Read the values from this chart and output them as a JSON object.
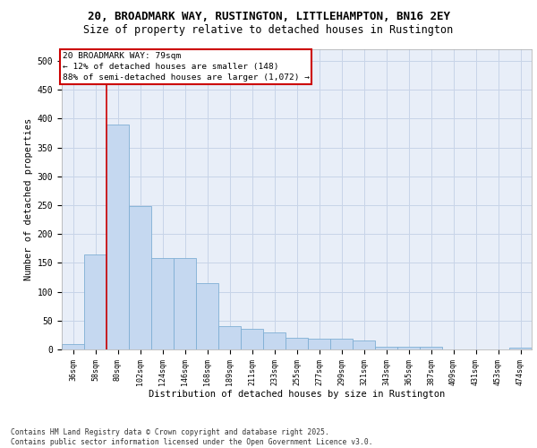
{
  "title_line1": "20, BROADMARK WAY, RUSTINGTON, LITTLEHAMPTON, BN16 2EY",
  "title_line2": "Size of property relative to detached houses in Rustington",
  "xlabel": "Distribution of detached houses by size in Rustington",
  "ylabel": "Number of detached properties",
  "categories": [
    "36sqm",
    "58sqm",
    "80sqm",
    "102sqm",
    "124sqm",
    "146sqm",
    "168sqm",
    "189sqm",
    "211sqm",
    "233sqm",
    "255sqm",
    "277sqm",
    "299sqm",
    "321sqm",
    "343sqm",
    "365sqm",
    "387sqm",
    "409sqm",
    "431sqm",
    "453sqm",
    "474sqm"
  ],
  "values": [
    10,
    165,
    390,
    248,
    158,
    158,
    115,
    40,
    35,
    30,
    20,
    18,
    18,
    16,
    5,
    5,
    5,
    0,
    0,
    0,
    3
  ],
  "bar_color": "#c5d8f0",
  "bar_edge_color": "#7fafd4",
  "grid_color": "#c8d4e8",
  "background_color": "#e8eef8",
  "vline_color": "#cc0000",
  "vline_x_index": 2,
  "annotation_text_line1": "20 BROADMARK WAY: 79sqm",
  "annotation_text_line2": "← 12% of detached houses are smaller (148)",
  "annotation_text_line3": "88% of semi-detached houses are larger (1,072) →",
  "footnote": "Contains HM Land Registry data © Crown copyright and database right 2025.\nContains public sector information licensed under the Open Government Licence v3.0.",
  "ylim": [
    0,
    520
  ],
  "yticks": [
    0,
    50,
    100,
    150,
    200,
    250,
    300,
    350,
    400,
    450,
    500
  ]
}
